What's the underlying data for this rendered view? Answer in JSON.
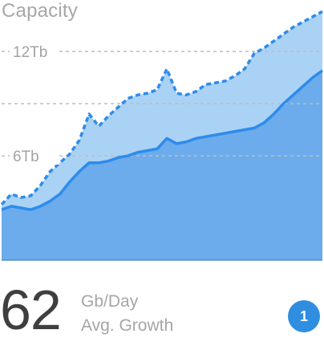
{
  "widget": {
    "title": "Capacity",
    "big_number": "62",
    "metric_unit": "Gb/Day",
    "metric_label": "Avg. Growth",
    "badge": "1"
  },
  "colors": {
    "area_upper": "#aad2f5",
    "area_lower": "#6cacec",
    "line_color": "#2e8cea",
    "grid_color": "#bdbdbd",
    "tick_text": "#a3a3a3",
    "badge_bg": "#2f8ee0"
  },
  "chart_data": {
    "type": "area",
    "title": "Capacity",
    "xlabel": "",
    "ylabel": "",
    "ylim": [
      0,
      14.5
    ],
    "yticks": [
      {
        "value": 6,
        "label": "6Tb"
      },
      {
        "value": 12,
        "label": "12Tb"
      }
    ],
    "grid_values": [
      6,
      9,
      12
    ],
    "x": [
      0,
      1,
      2,
      3,
      4,
      5,
      6,
      7,
      8,
      9,
      10,
      11,
      12,
      13,
      14,
      15,
      16,
      17,
      18,
      19,
      20,
      21,
      22,
      23,
      24,
      25,
      26,
      27,
      28,
      29,
      30,
      31,
      32,
      33
    ],
    "series": [
      {
        "style": "dashed",
        "values": [
          3.2,
          3.8,
          3.6,
          3.7,
          4.3,
          5.1,
          5.6,
          6.1,
          6.9,
          8.4,
          7.7,
          8.3,
          8.8,
          9.3,
          9.5,
          9.6,
          9.8,
          11.0,
          9.6,
          9.5,
          9.7,
          10.1,
          10.2,
          10.3,
          10.6,
          11.0,
          11.9,
          12.2,
          12.6,
          13.0,
          13.4,
          13.7,
          14.0,
          14.3
        ]
      },
      {
        "style": "solid",
        "values": [
          2.9,
          3.1,
          3.0,
          2.9,
          3.1,
          3.4,
          3.8,
          4.5,
          5.1,
          5.6,
          5.6,
          5.7,
          5.9,
          6.0,
          6.2,
          6.3,
          6.4,
          7.0,
          6.7,
          6.8,
          7.0,
          7.1,
          7.2,
          7.3,
          7.4,
          7.5,
          7.6,
          7.9,
          8.4,
          9.0,
          9.5,
          10.0,
          10.5,
          10.9
        ]
      }
    ]
  }
}
